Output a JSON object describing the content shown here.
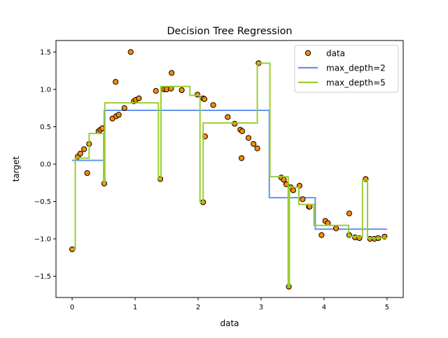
{
  "chart_data": {
    "type": "scatter",
    "title": "Decision Tree Regression",
    "xlabel": "data",
    "ylabel": "target",
    "xlim": [
      -0.256,
      5.256
    ],
    "ylim": [
      -1.785,
      1.654
    ],
    "xticks": [
      0,
      1,
      2,
      3,
      4,
      5
    ],
    "xtick_labels": [
      "0",
      "1",
      "2",
      "3",
      "4",
      "5"
    ],
    "yticks": [
      -1.5,
      -1.0,
      -0.5,
      0.0,
      0.5,
      1.0,
      1.5
    ],
    "ytick_labels": [
      "−1.5",
      "−1.0",
      "−0.5",
      "0.0",
      "0.5",
      "1.0",
      "1.5"
    ],
    "grid": false,
    "legend_placement": "top-right",
    "scatter": {
      "name": "data",
      "color": "#ff8c00",
      "edgecolor": "#000000",
      "points": [
        [
          0,
          -1.14
        ],
        [
          0.09,
          0.1
        ],
        [
          0.13,
          0.14
        ],
        [
          0.19,
          0.2
        ],
        [
          0.24,
          -0.12
        ],
        [
          0.27,
          0.27
        ],
        [
          0.42,
          0.44
        ],
        [
          0.45,
          0.46
        ],
        [
          0.48,
          0.48
        ],
        [
          0.51,
          -0.26
        ],
        [
          0.64,
          0.61
        ],
        [
          0.69,
          1.1
        ],
        [
          0.7,
          0.64
        ],
        [
          0.74,
          0.66
        ],
        [
          0.83,
          0.75
        ],
        [
          0.93,
          1.5
        ],
        [
          0.98,
          0.84
        ],
        [
          1.01,
          0.86
        ],
        [
          1.06,
          0.88
        ],
        [
          1.33,
          0.98
        ],
        [
          1.4,
          -0.2
        ],
        [
          1.46,
          1.0
        ],
        [
          1.5,
          1.0
        ],
        [
          1.57,
          1.01
        ],
        [
          1.58,
          1.22
        ],
        [
          1.74,
          0.99
        ],
        [
          1.99,
          0.93
        ],
        [
          2.08,
          0.88
        ],
        [
          2.1,
          0.87
        ],
        [
          2.08,
          -0.51
        ],
        [
          2.11,
          0.37
        ],
        [
          2.24,
          0.79
        ],
        [
          2.47,
          0.63
        ],
        [
          2.58,
          0.54
        ],
        [
          2.67,
          0.46
        ],
        [
          2.7,
          0.44
        ],
        [
          2.69,
          0.08
        ],
        [
          2.8,
          0.35
        ],
        [
          2.88,
          0.27
        ],
        [
          2.94,
          0.21
        ],
        [
          2.96,
          1.35
        ],
        [
          3.32,
          -0.18
        ],
        [
          3.36,
          -0.21
        ],
        [
          3.4,
          -0.27
        ],
        [
          3.44,
          -1.64
        ],
        [
          3.47,
          -0.31
        ],
        [
          3.51,
          -0.35
        ],
        [
          3.61,
          -0.29
        ],
        [
          3.66,
          -0.47
        ],
        [
          3.76,
          -0.57
        ],
        [
          3.77,
          -0.57
        ],
        [
          3.96,
          -0.95
        ],
        [
          4.02,
          -0.76
        ],
        [
          4.06,
          -0.79
        ],
        [
          4.19,
          -0.86
        ],
        [
          4.4,
          -0.66
        ],
        [
          4.4,
          -0.95
        ],
        [
          4.49,
          -0.98
        ],
        [
          4.56,
          -0.99
        ],
        [
          4.66,
          -0.2
        ],
        [
          4.73,
          -1.0
        ],
        [
          4.8,
          -1.0
        ],
        [
          4.86,
          -0.99
        ],
        [
          4.96,
          -0.97
        ]
      ]
    },
    "series": [
      {
        "name": "max_depth=2",
        "color": "#6495ed",
        "steps": [
          [
            0,
            0.05
          ],
          [
            0.51,
            0.72
          ],
          [
            3.13,
            -0.45
          ],
          [
            3.86,
            -0.87
          ],
          [
            5,
            -0.87
          ]
        ]
      },
      {
        "name": "max_depth=5",
        "color": "#9acd32",
        "steps": [
          [
            0,
            -1.14
          ],
          [
            0.05,
            0.08
          ],
          [
            0.27,
            0.41
          ],
          [
            0.5,
            -0.26
          ],
          [
            0.52,
            0.82
          ],
          [
            1.37,
            -0.2
          ],
          [
            1.41,
            1.04
          ],
          [
            1.87,
            0.92
          ],
          [
            2.03,
            -0.51
          ],
          [
            2.08,
            0.55
          ],
          [
            2.94,
            1.35
          ],
          [
            3.14,
            -0.17
          ],
          [
            3.43,
            -1.64
          ],
          [
            3.45,
            -0.31
          ],
          [
            3.6,
            -0.54
          ],
          [
            3.84,
            -0.82
          ],
          [
            4.39,
            -0.97
          ],
          [
            4.61,
            -0.22
          ],
          [
            4.69,
            -0.99
          ],
          [
            5,
            -0.99
          ]
        ]
      }
    ]
  }
}
